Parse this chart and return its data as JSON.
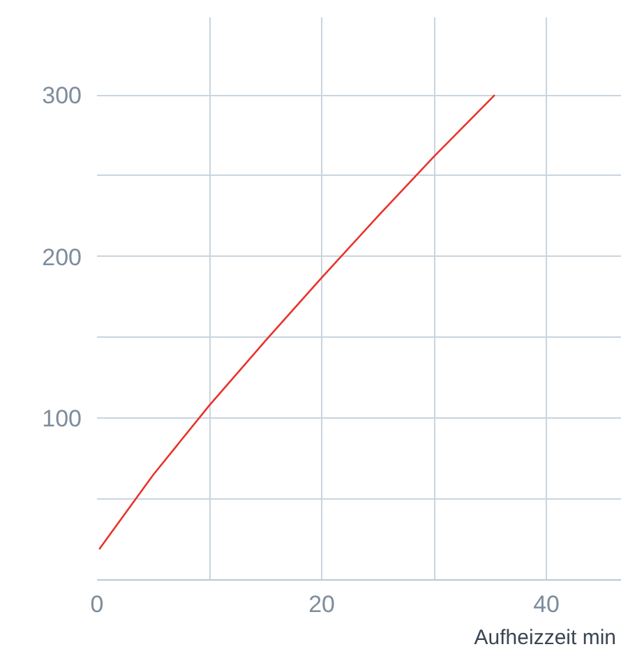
{
  "chart_data": {
    "type": "line",
    "xlabel": "Aufheizzeit min",
    "x": [
      0.2,
      5,
      10,
      15,
      20,
      25,
      30,
      35.4
    ],
    "series": [
      {
        "color": "#e8332a",
        "values": [
          19,
          65,
          108,
          148,
          187,
          225,
          262,
          300
        ]
      }
    ],
    "xlim": [
      0,
      46.7
    ],
    "ylim": [
      0,
      348
    ],
    "xticks": [
      0,
      {
        "value": 10,
        "label": null
      },
      20,
      {
        "value": 30,
        "label": null
      },
      40
    ],
    "yticks": [
      {
        "value": 50,
        "label": null
      },
      100,
      {
        "value": 150,
        "label": null
      },
      200,
      {
        "value": 250,
        "label": null
      },
      300
    ],
    "grid": true
  }
}
